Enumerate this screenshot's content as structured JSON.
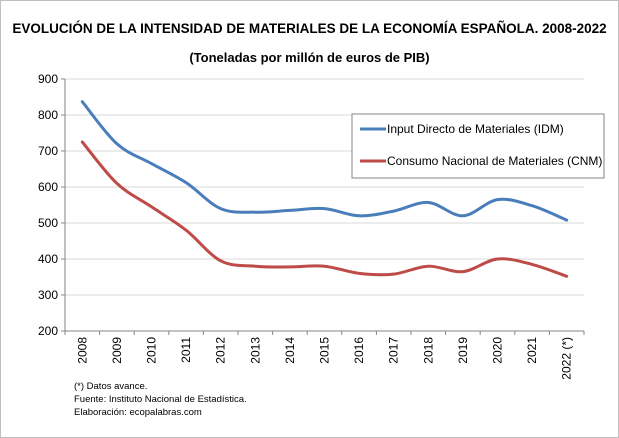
{
  "chart_data": {
    "type": "line",
    "title": "EVOLUCIÓN DE LA INTENSIDAD DE MATERIALES DE LA ECONOMÍA ESPAÑOLA. 2008-2022",
    "subtitle": "(Toneladas por millón de euros de PIB)",
    "categories": [
      "2008",
      "2009",
      "2010",
      "2011",
      "2012",
      "2013",
      "2014",
      "2015",
      "2016",
      "2017",
      "2018",
      "2019",
      "2020",
      "2021",
      "2022 (*)"
    ],
    "ylim": [
      200,
      900
    ],
    "yticks": [
      200,
      300,
      400,
      500,
      600,
      700,
      800,
      900
    ],
    "grid": true,
    "legend": "top-right",
    "series": [
      {
        "name": "Input Directo de Materiales (IDM)",
        "color": "#4a7ebb",
        "values": [
          837,
          720,
          665,
          612,
          540,
          530,
          535,
          540,
          520,
          533,
          557,
          520,
          565,
          548,
          508
        ]
      },
      {
        "name": "Consumo Nacional de Materiales (CNM)",
        "color": "#be4b48",
        "values": [
          725,
          610,
          545,
          480,
          395,
          380,
          378,
          380,
          360,
          358,
          380,
          365,
          400,
          385,
          352
        ]
      }
    ]
  },
  "notes": [
    "(*) Datos avance.",
    "Fuente: Instituto Nacional de Estadística.",
    "Elaboración: ecopalabras.com"
  ]
}
